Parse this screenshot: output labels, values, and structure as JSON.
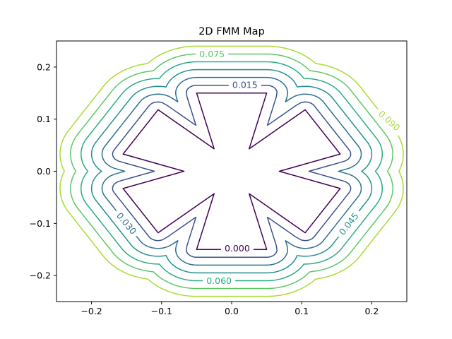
{
  "chart_data": {
    "type": "contour",
    "title": "2D FMM Map",
    "xlabel": "",
    "ylabel": "",
    "xlim": [
      -0.25,
      0.25
    ],
    "ylim": [
      -0.25,
      0.25
    ],
    "grid": false,
    "xticks": [
      {
        "value": -0.2,
        "label": "−0.2"
      },
      {
        "value": -0.1,
        "label": "−0.1"
      },
      {
        "value": 0.0,
        "label": "0.0"
      },
      {
        "value": 0.1,
        "label": "0.1"
      },
      {
        "value": 0.2,
        "label": "0.2"
      }
    ],
    "yticks": [
      {
        "value": -0.2,
        "label": "−0.2"
      },
      {
        "value": -0.1,
        "label": "−0.1"
      },
      {
        "value": 0.0,
        "label": "0.0"
      },
      {
        "value": 0.1,
        "label": "0.1"
      },
      {
        "value": 0.2,
        "label": "0.2"
      }
    ],
    "zero_contour": [
      [
        -0.05,
        0.15
      ],
      [
        0.05,
        0.15
      ],
      [
        0.025,
        0.043
      ],
      [
        0.105,
        0.118
      ],
      [
        0.155,
        0.033
      ],
      [
        0.068,
        0.0
      ],
      [
        0.155,
        -0.033
      ],
      [
        0.105,
        -0.118
      ],
      [
        0.025,
        -0.043
      ],
      [
        0.05,
        -0.15
      ],
      [
        -0.05,
        -0.15
      ],
      [
        -0.025,
        -0.043
      ],
      [
        -0.105,
        -0.118
      ],
      [
        -0.155,
        -0.033
      ],
      [
        -0.068,
        0.0
      ],
      [
        -0.155,
        0.033
      ],
      [
        -0.105,
        0.118
      ],
      [
        -0.025,
        0.043
      ]
    ],
    "levels": [
      {
        "value": 0.0,
        "color": "#440154"
      },
      {
        "value": 0.015,
        "color": "#3b518b"
      },
      {
        "value": 0.03,
        "color": "#2c718e"
      },
      {
        "value": 0.045,
        "color": "#21908d"
      },
      {
        "value": 0.06,
        "color": "#27ad81"
      },
      {
        "value": 0.075,
        "color": "#5cc863"
      },
      {
        "value": 0.09,
        "color": "#aadc32"
      }
    ],
    "contour_labels": [
      {
        "text": "0.000",
        "level": 0.0,
        "x": 0.008,
        "y": -0.148,
        "rotation": 0
      },
      {
        "text": "0.015",
        "level": 0.015,
        "x": 0.019,
        "y": 0.166,
        "rotation": 0
      },
      {
        "text": "0.030",
        "level": 0.03,
        "x": -0.15,
        "y": -0.1,
        "rotation": 50
      },
      {
        "text": "0.045",
        "level": 0.045,
        "x": 0.167,
        "y": -0.101,
        "rotation": -52
      },
      {
        "text": "0.060",
        "level": 0.06,
        "x": -0.018,
        "y": -0.21,
        "rotation": 0
      },
      {
        "text": "0.075",
        "level": 0.075,
        "x": -0.028,
        "y": 0.225,
        "rotation": 0
      },
      {
        "text": "0.090",
        "level": 0.09,
        "x": 0.225,
        "y": 0.097,
        "rotation": 42
      }
    ]
  }
}
